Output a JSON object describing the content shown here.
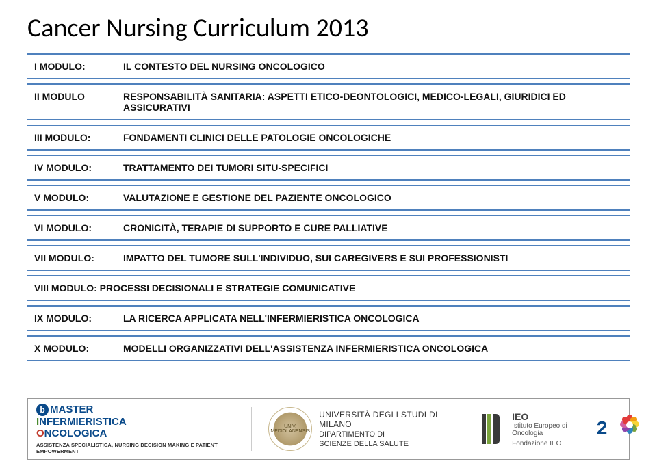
{
  "title": "Cancer Nursing Curriculum 2013",
  "table_border_color": "#4f81bd",
  "rows": [
    {
      "label": "I MODULO:",
      "desc": "IL CONTESTO DEL NURSING ONCOLOGICO"
    },
    {
      "label": "II MODULO",
      "desc": "RESPONSABILITÀ SANITARIA: ASPETTI ETICO-DEONTOLOGICI, MEDICO-LEGALI, GIURIDICI ED ASSICURATIVI"
    },
    {
      "label": "III MODULO:",
      "desc": "FONDAMENTI CLINICI DELLE PATOLOGIE ONCOLOGICHE"
    },
    {
      "label": "IV MODULO:",
      "desc": "TRATTAMENTO DEI TUMORI SITU-SPECIFICI"
    },
    {
      "label": "V MODULO:",
      "desc": "VALUTAZIONE E GESTIONE DEL PAZIENTE ONCOLOGICO"
    },
    {
      "label": "VI MODULO:",
      "desc": "CRONICITÀ, TERAPIE DI SUPPORTO E CURE PALLIATIVE"
    },
    {
      "label": "VII MODULO:",
      "desc": "IMPATTO DEL TUMORE SULL'INDIVIDUO, SUI CAREGIVERS E SUI PROFESSIONISTI"
    },
    {
      "label": "VIII MODULO:",
      "desc": "PROCESSI DECISIONALI E STRATEGIE COMUNICATIVE",
      "single": true
    },
    {
      "label": "IX MODULO:",
      "desc": "LA RICERCA APPLICATA NELL'INFERMIERISTICA ONCOLOGICA"
    },
    {
      "label": "X MODULO:",
      "desc": "MODELLI ORGANIZZATIVI DELL'ASSISTENZA INFERMIERISTICA ONCOLOGICA"
    }
  ],
  "footer": {
    "master": {
      "line1_pre": "M",
      "line1_a": "ASTER",
      "line2_pre": "I",
      "line2_a": "NFERMIERISTICA",
      "line3_pre": "O",
      "line3_a": "NCOLOGICA",
      "tag": "ASSISTENZA SPECIALISTICA, NURSING DECISION MAKING E PATIENT EMPOWERMENT"
    },
    "uni": {
      "name": "UNIVERSITÀ DEGLI STUDI DI MILANO",
      "dept1": "DIPARTIMENTO DI",
      "dept2": "SCIENZE DELLA SALUTE"
    },
    "ieo": {
      "brand": "IEO",
      "full": "Istituto Europeo di Oncologia",
      "fond": "Fondazione IEO"
    },
    "twenty": "20"
  },
  "flower_colors": [
    "#e23b3b",
    "#f39c12",
    "#f7d436",
    "#7aa33d",
    "#2e86c1",
    "#8e44ad",
    "#d35fa0",
    "#e23b3b"
  ]
}
